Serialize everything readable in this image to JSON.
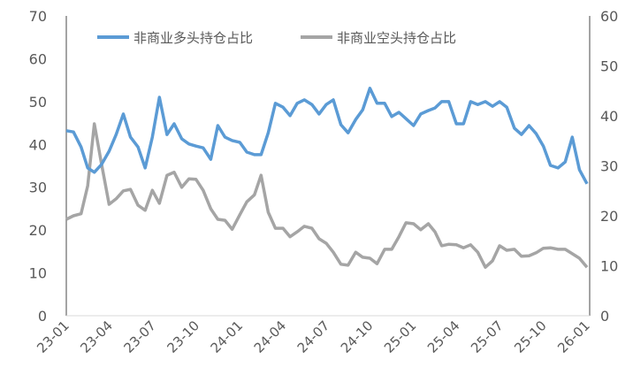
{
  "chart_data": {
    "type": "line",
    "title": "",
    "legend_position": "top",
    "grid": false,
    "y_left": {
      "range": [
        0,
        70
      ],
      "ticks": [
        "0",
        "10",
        "20",
        "30",
        "40",
        "50",
        "60",
        "70"
      ]
    },
    "y_right": {
      "range": [
        0,
        60
      ],
      "ticks": [
        "0",
        "10",
        "20",
        "30",
        "40",
        "50",
        "60"
      ]
    },
    "x_tick_labels": [
      "23-01",
      "23-04",
      "23-07",
      "23-10",
      "24-01",
      "24-04",
      "24-07",
      "24-10",
      "25-01",
      "25-04",
      "25-07",
      "25-10",
      "26-01"
    ],
    "x": [
      "2023-01-01",
      "2023-01-16",
      "2023-02-01",
      "2023-02-15",
      "2023-03-01",
      "2023-03-16",
      "2023-04-01",
      "2023-04-16",
      "2023-05-01",
      "2023-05-16",
      "2023-06-01",
      "2023-06-16",
      "2023-07-01",
      "2023-07-16",
      "2023-08-01",
      "2023-08-16",
      "2023-09-01",
      "2023-09-16",
      "2023-10-01",
      "2023-10-16",
      "2023-11-01",
      "2023-11-16",
      "2023-12-01",
      "2023-12-16",
      "2024-01-01",
      "2024-01-16",
      "2024-02-01",
      "2024-02-15",
      "2024-03-01",
      "2024-03-16",
      "2024-04-01",
      "2024-04-16",
      "2024-05-01",
      "2024-05-16",
      "2024-06-01",
      "2024-06-16",
      "2024-07-01",
      "2024-07-16",
      "2024-08-01",
      "2024-08-16",
      "2024-09-01",
      "2024-09-16",
      "2024-10-01",
      "2024-10-16",
      "2024-11-01",
      "2024-11-16",
      "2024-12-01",
      "2024-12-16",
      "2025-01-01",
      "2025-01-16",
      "2025-02-01",
      "2025-02-15",
      "2025-03-01",
      "2025-03-16",
      "2025-04-01",
      "2025-04-16",
      "2025-05-01",
      "2025-05-16",
      "2025-06-01",
      "2025-06-16",
      "2025-07-01",
      "2025-07-16",
      "2025-08-01",
      "2025-08-16",
      "2025-09-01",
      "2025-09-16",
      "2025-10-01",
      "2025-10-16",
      "2025-11-01",
      "2025-11-16",
      "2025-12-01",
      "2025-12-16",
      "2026-01-01"
    ],
    "series": [
      {
        "name": "非商业多头持仓占比",
        "axis": "left",
        "color": "#5B9BD5",
        "values": [
          43.2,
          42.9,
          39.4,
          34.5,
          33.5,
          35.3,
          38.4,
          42.3,
          47.1,
          41.7,
          39.4,
          34.5,
          41.7,
          51.0,
          42.3,
          44.8,
          41.3,
          40.1,
          39.6,
          39.2,
          36.5,
          44.4,
          41.7,
          40.9,
          40.5,
          38.2,
          37.6,
          37.6,
          42.7,
          49.6,
          48.7,
          46.7,
          49.6,
          50.4,
          49.3,
          47.1,
          49.3,
          50.4,
          44.6,
          42.7,
          45.8,
          48.1,
          53.1,
          49.6,
          49.6,
          46.5,
          47.5,
          46.0,
          44.4,
          47.1,
          47.9,
          48.5,
          50.0,
          50.0,
          44.8,
          44.8,
          50.0,
          49.3,
          50.0,
          48.9,
          50.0,
          48.7,
          43.8,
          42.3,
          44.4,
          42.5,
          39.6,
          35.1,
          34.5,
          35.9,
          41.7,
          34.1,
          30.8
        ]
      },
      {
        "name": "非商业空头持仓占比",
        "axis": "right",
        "color": "#A5A5A5",
        "values": [
          19.3,
          20.0,
          20.4,
          26.0,
          38.4,
          30.4,
          22.3,
          23.4,
          25.0,
          25.3,
          22.1,
          21.1,
          25.1,
          22.5,
          28.1,
          28.7,
          25.7,
          27.4,
          27.3,
          25.1,
          21.4,
          19.3,
          19.1,
          17.3,
          20.2,
          22.8,
          24.2,
          28.1,
          20.7,
          17.5,
          17.5,
          15.8,
          16.8,
          17.9,
          17.5,
          15.4,
          14.5,
          12.7,
          10.3,
          10.1,
          12.7,
          11.7,
          11.5,
          10.4,
          13.3,
          13.3,
          15.8,
          18.6,
          18.4,
          17.2,
          18.4,
          16.8,
          14.0,
          14.3,
          14.2,
          13.6,
          14.2,
          12.7,
          9.7,
          11.0,
          14.0,
          13.1,
          13.3,
          11.9,
          12.0,
          12.6,
          13.5,
          13.6,
          13.3,
          13.3,
          12.4,
          11.5,
          9.7
        ]
      }
    ]
  }
}
